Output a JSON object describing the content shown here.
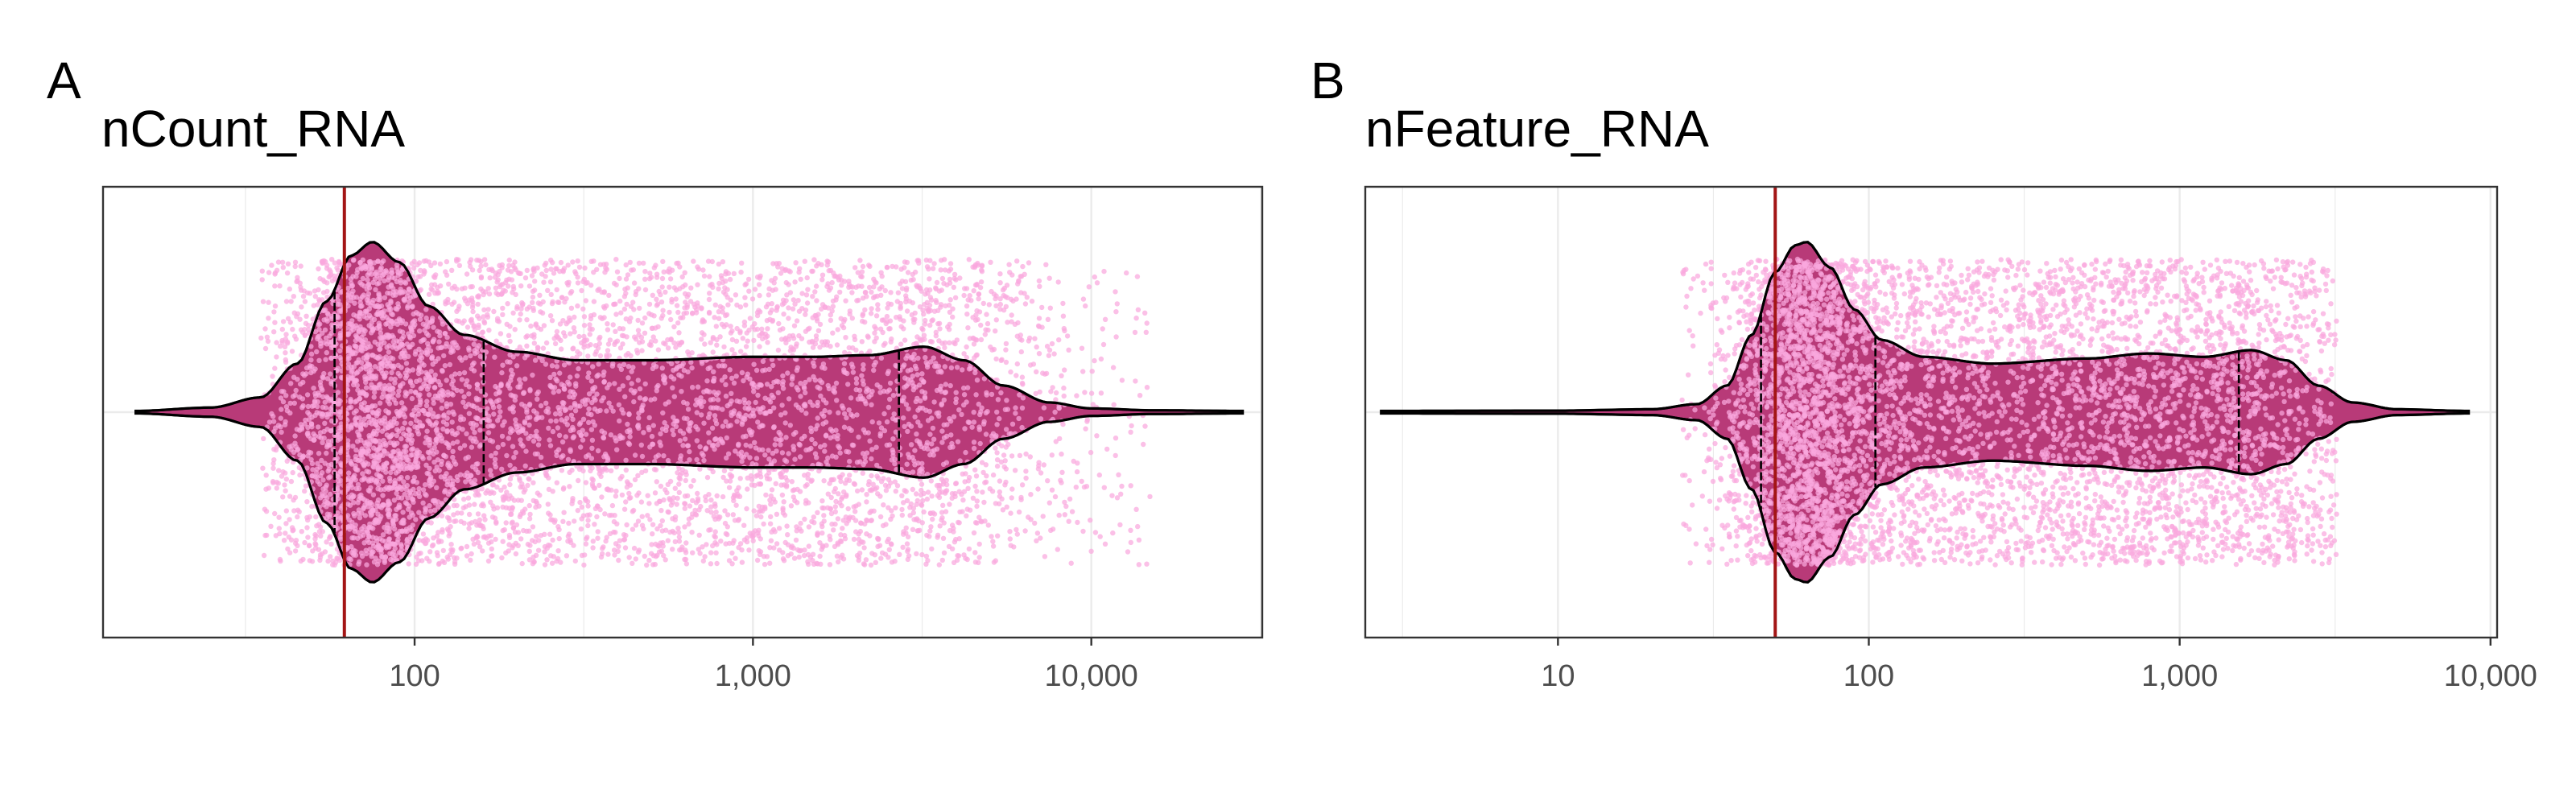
{
  "colors": {
    "violin_fill": "#b83a78",
    "jitter_points": "#f9a8de",
    "threshold_line": "#a31515",
    "gridline": "#ebebeb",
    "panel_border": "#333333",
    "tick_text": "#4d4d4d"
  },
  "chart_data": [
    {
      "type": "violin",
      "panel_label": "A",
      "title": "nCount_RNA",
      "x_scale": "log10",
      "xlim": [
        12,
        32000
      ],
      "x_breaks": [
        100,
        1000,
        10000
      ],
      "x_tick_labels": [
        "100",
        "1,000",
        "10,000"
      ],
      "xlabel": "",
      "ylabel": "",
      "grid": true,
      "threshold": 62,
      "violin": {
        "range": [
          15,
          28000
        ],
        "quantile_lines": [
          58,
          160,
          2700
        ],
        "density_profile": [
          [
            15,
            0.0
          ],
          [
            25,
            0.02
          ],
          [
            35,
            0.08
          ],
          [
            45,
            0.28
          ],
          [
            55,
            0.65
          ],
          [
            65,
            0.92
          ],
          [
            75,
            1.0
          ],
          [
            90,
            0.88
          ],
          [
            110,
            0.62
          ],
          [
            140,
            0.45
          ],
          [
            200,
            0.35
          ],
          [
            300,
            0.3
          ],
          [
            500,
            0.3
          ],
          [
            1000,
            0.32
          ],
          [
            1500,
            0.32
          ],
          [
            2200,
            0.33
          ],
          [
            3200,
            0.38
          ],
          [
            4200,
            0.3
          ],
          [
            5500,
            0.15
          ],
          [
            7500,
            0.05
          ],
          [
            10000,
            0.015
          ],
          [
            15000,
            0.004
          ],
          [
            28000,
            0.0
          ]
        ]
      },
      "points": {
        "count": 6000,
        "range": [
          35,
          15000
        ]
      }
    },
    {
      "type": "violin",
      "panel_label": "B",
      "title": "nFeature_RNA",
      "x_scale": "log10",
      "xlim": [
        2.4,
        10500
      ],
      "x_breaks": [
        10,
        100,
        1000,
        10000
      ],
      "x_tick_labels": [
        "10",
        "100",
        "1,000",
        "10,000"
      ],
      "xlabel": "",
      "ylabel": "",
      "grid": true,
      "threshold": 50,
      "violin": {
        "range": [
          2.7,
          8500
        ],
        "quantile_lines": [
          45,
          105,
          1550
        ],
        "density_profile": [
          [
            2.7,
            0.0
          ],
          [
            10,
            0.002
          ],
          [
            20,
            0.01
          ],
          [
            28,
            0.04
          ],
          [
            35,
            0.15
          ],
          [
            42,
            0.45
          ],
          [
            50,
            0.82
          ],
          [
            58,
            0.98
          ],
          [
            63,
            1.0
          ],
          [
            75,
            0.85
          ],
          [
            90,
            0.6
          ],
          [
            110,
            0.42
          ],
          [
            150,
            0.32
          ],
          [
            250,
            0.28
          ],
          [
            500,
            0.31
          ],
          [
            800,
            0.34
          ],
          [
            1200,
            0.32
          ],
          [
            1700,
            0.36
          ],
          [
            2200,
            0.3
          ],
          [
            2800,
            0.15
          ],
          [
            3600,
            0.05
          ],
          [
            5000,
            0.01
          ],
          [
            8500,
            0.0
          ]
        ]
      },
      "points": {
        "count": 6000,
        "range": [
          25,
          3200
        ]
      }
    }
  ]
}
